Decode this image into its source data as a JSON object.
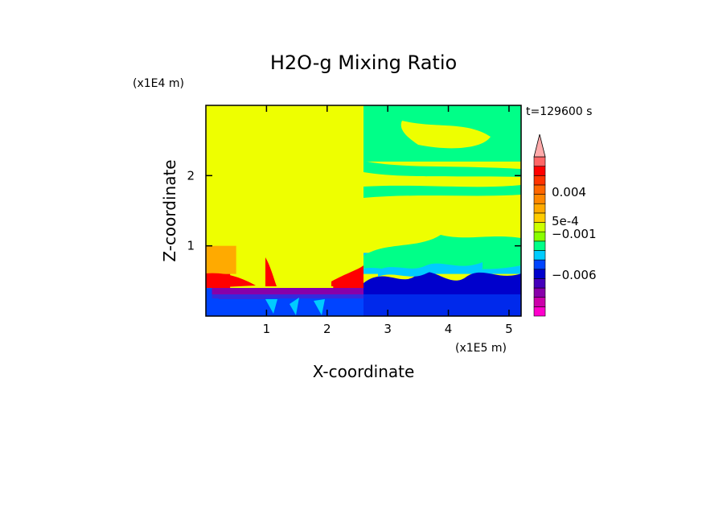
{
  "chart_data": {
    "type": "heatmap",
    "title": "H2O-g Mixing Ratio",
    "xlabel": "X-coordinate",
    "ylabel": "Z-coordinate",
    "x_scale_label": "(x1E5 m)",
    "y_scale_label": "(x1E4 m)",
    "time_label": "t=129600 s",
    "xlim": [
      0,
      5.2
    ],
    "ylim": [
      0,
      3.0
    ],
    "x_ticks": [
      {
        "value": 1,
        "label": "1"
      },
      {
        "value": 2,
        "label": "2"
      },
      {
        "value": 3,
        "label": "3"
      },
      {
        "value": 4,
        "label": "4"
      },
      {
        "value": 5,
        "label": "5"
      }
    ],
    "y_ticks": [
      {
        "value": 1,
        "label": "1"
      },
      {
        "value": 2,
        "label": "2"
      }
    ],
    "colorbar": {
      "colors": [
        "#ff00cc",
        "#cc00aa",
        "#8800aa",
        "#4400bb",
        "#0000cc",
        "#0044ff",
        "#00ccff",
        "#00ff88",
        "#88ff00",
        "#ccff00",
        "#ffcc00",
        "#ffaa00",
        "#ff8800",
        "#ff6600",
        "#ff3300",
        "#ff0000",
        "#ff6666",
        "#ffaaaa"
      ],
      "labels": [
        {
          "text": "0.004",
          "level": 0.004
        },
        {
          "text": "5e-4",
          "level": 0.0005
        },
        {
          "text": "−0.001",
          "level": -0.001
        },
        {
          "text": "−0.006",
          "level": -0.006
        }
      ]
    },
    "field_regions": [
      {
        "level": "background",
        "color": "#eeff00",
        "x0": 0.0,
        "x1": 5.2,
        "z0": 0.0,
        "z1": 3.0
      },
      {
        "level": "low",
        "color": "#ff0000",
        "x0": 0.0,
        "x1": 0.4,
        "z0": 0.4,
        "z1": 0.6
      },
      {
        "level": "mid",
        "color": "#ffaa00",
        "x0": 0.0,
        "x1": 0.5,
        "z0": 0.6,
        "z1": 1.0
      },
      {
        "level": "low",
        "color": "#ff0000",
        "x0": 2.1,
        "x1": 2.6,
        "z0": 0.4,
        "z1": 0.5
      },
      {
        "level": "neg",
        "color": "#00ff88",
        "x0": 2.6,
        "x1": 5.2,
        "z0": 2.2,
        "z1": 3.0
      },
      {
        "level": "neg",
        "color": "#00ccff",
        "x0": 2.6,
        "x1": 5.2,
        "z0": 0.6,
        "z1": 0.9
      },
      {
        "level": "neg",
        "color": "#0044ff",
        "x0": 0.0,
        "x1": 5.2,
        "z0": 0.0,
        "z1": 0.4
      },
      {
        "level": "neg",
        "color": "#8800aa",
        "x0": 0.1,
        "x1": 2.6,
        "z0": 0.25,
        "z1": 0.4
      }
    ]
  }
}
